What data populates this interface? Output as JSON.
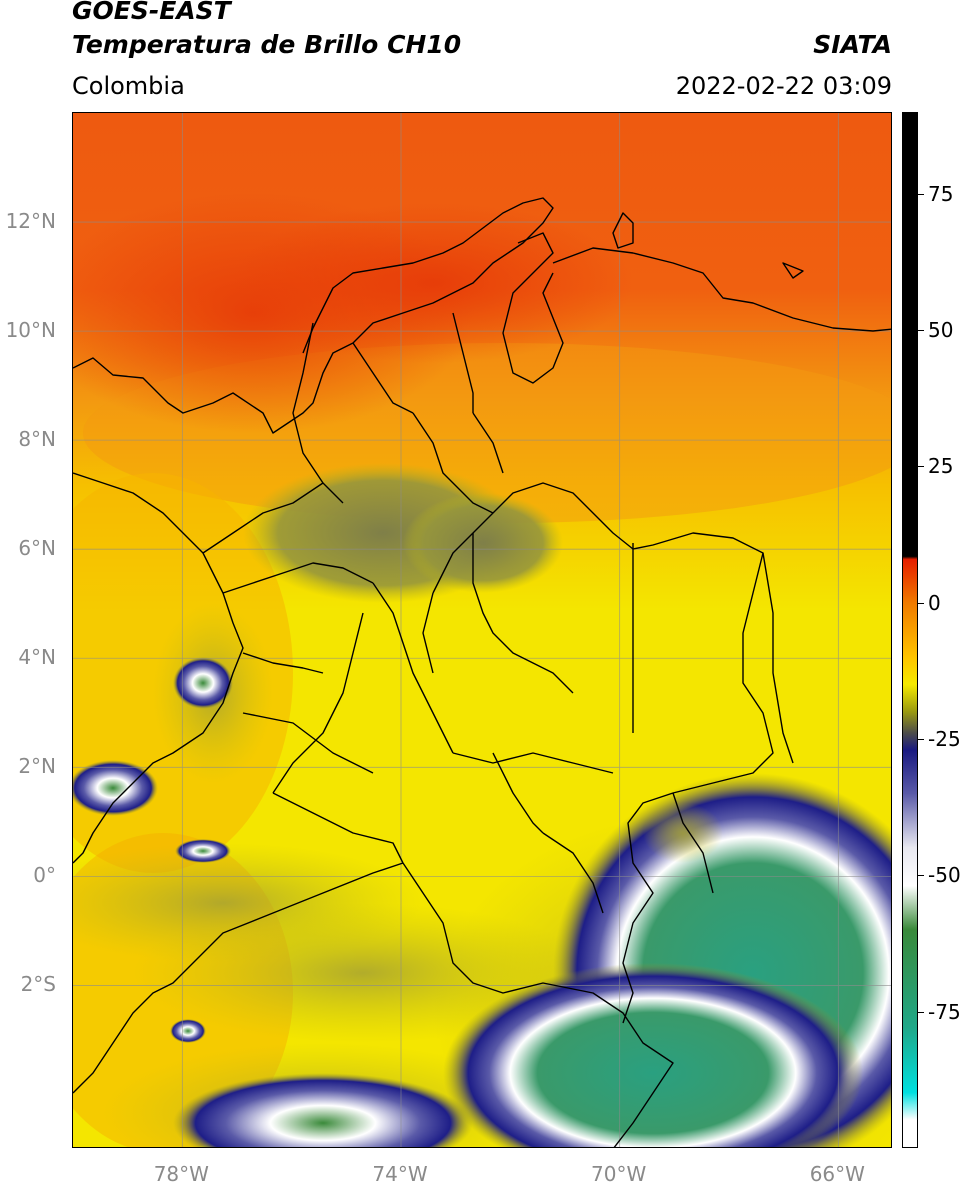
{
  "header": {
    "satellite": "GOES-EAST",
    "product": "Temperatura de Brillo CH10",
    "region": "Colombia",
    "organization": "SIATA",
    "timestamp": "2022-02-22 03:09"
  },
  "map": {
    "lon_range": [
      -80,
      -65
    ],
    "lat_range": [
      -5,
      14
    ],
    "lat_ticks": [
      {
        "value": 12,
        "label": "12°N"
      },
      {
        "value": 10,
        "label": "10°N"
      },
      {
        "value": 8,
        "label": "8°N"
      },
      {
        "value": 6,
        "label": "6°N"
      },
      {
        "value": 4,
        "label": "4°N"
      },
      {
        "value": 2,
        "label": "2°N"
      },
      {
        "value": 0,
        "label": "0°"
      },
      {
        "value": -2,
        "label": "2°S"
      }
    ],
    "lon_ticks": [
      {
        "value": -78,
        "label": "78°W"
      },
      {
        "value": -74,
        "label": "74°W"
      },
      {
        "value": -70,
        "label": "70°W"
      },
      {
        "value": -66,
        "label": "66°W"
      }
    ],
    "gridlines": true
  },
  "colorbar": {
    "range": [
      -100,
      90
    ],
    "ticks": [
      {
        "value": 75,
        "label": "75"
      },
      {
        "value": 50,
        "label": "50"
      },
      {
        "value": 25,
        "label": "25"
      },
      {
        "value": 0,
        "label": "0"
      },
      {
        "value": -25,
        "label": "-25"
      },
      {
        "value": -50,
        "label": "-50"
      },
      {
        "value": -75,
        "label": "-75"
      }
    ],
    "stops": [
      {
        "value": 90,
        "color": "#000000"
      },
      {
        "value": 8.5,
        "color": "#000000"
      },
      {
        "value": 8,
        "color": "#e61e00"
      },
      {
        "value": 0,
        "color": "#f07a00"
      },
      {
        "value": -10,
        "color": "#ffc400"
      },
      {
        "value": -15,
        "color": "#f5ea00"
      },
      {
        "value": -20,
        "color": "#9a9a10"
      },
      {
        "value": -24,
        "color": "#4b4b4b"
      },
      {
        "value": -27,
        "color": "#1a1a80"
      },
      {
        "value": -35,
        "color": "#5a5aa8"
      },
      {
        "value": -45,
        "color": "#e8e8f0"
      },
      {
        "value": -52,
        "color": "#ffffff"
      },
      {
        "value": -60,
        "color": "#3a8a3a"
      },
      {
        "value": -78,
        "color": "#1fa888"
      },
      {
        "value": -90,
        "color": "#00e0e0"
      },
      {
        "value": -95,
        "color": "#ffffff"
      },
      {
        "value": -100,
        "color": "#ffffff"
      }
    ]
  },
  "colors": {
    "warm_north": "#ee5a10",
    "orange": "#f39a10",
    "yellow": "#f4e600",
    "olive_cloud": "#8f8f40",
    "deep_convection_blue": "#1e1e88",
    "cold_top_green": "#2aa080"
  }
}
